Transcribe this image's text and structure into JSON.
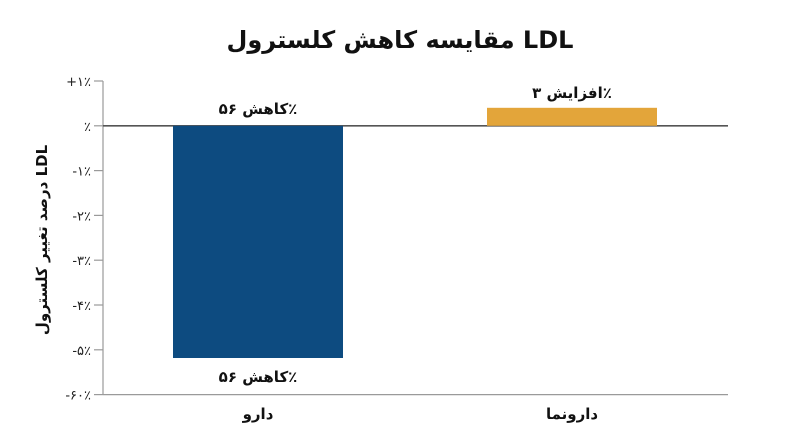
{
  "chart_data": {
    "type": "bar",
    "title": "مقایسه کاهش کلسترول LDL",
    "ylabel": "درصد تغییر کلسترول LDL",
    "xlabel": "",
    "categories": [
      "دارو",
      "دارونما"
    ],
    "values": [
      -56,
      3
    ],
    "ytick_labels": [
      "+۱٪",
      "٪",
      "-۱٪",
      "-۲٪",
      "-۳٪",
      "-۴٪",
      "-۵٪",
      "-۶۰٪"
    ],
    "bar_colors": [
      "#0d4b80",
      "#e3a53a"
    ],
    "data_labels": [
      {
        "text": "کاهش ۵۶٪",
        "text_bottom": "کاهش ۵۶٪"
      },
      {
        "text": "افزایش ۳٪"
      }
    ],
    "grid": false
  }
}
